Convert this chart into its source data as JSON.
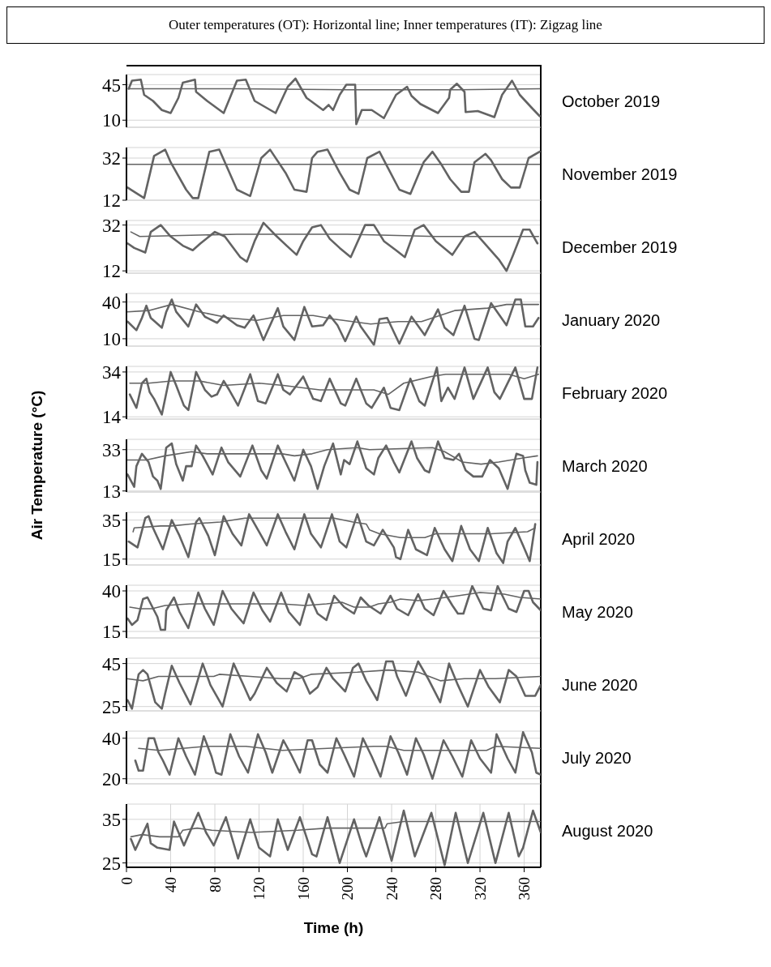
{
  "chart_data": [
    {
      "type": "line",
      "title": "Outer temperatures (OT): Horizontal line; Inner temperatures (IT): Zigzag line",
      "annotations": [
        "October 2019"
      ],
      "xlim": [
        0,
        375
      ],
      "xticks": [
        0,
        40,
        80,
        120,
        160,
        200,
        240,
        280,
        320,
        360
      ],
      "ylim": [
        3,
        55
      ],
      "yticks": [
        10,
        45
      ],
      "grid": true,
      "tick_labels": "y",
      "series": [
        {
          "color": "#636363",
          "x": [
            2,
            5,
            13,
            16,
            24,
            32,
            40,
            47,
            51,
            62,
            63,
            73,
            88,
            100,
            108,
            116,
            135,
            146,
            153,
            163,
            178,
            183,
            187,
            193,
            199,
            207,
            208,
            213,
            222,
            233,
            244,
            254,
            258,
            266,
            282,
            292,
            293,
            299,
            306,
            307,
            318,
            333,
            340,
            349,
            356,
            367,
            374
          ],
          "values": [
            41,
            49,
            50,
            35,
            29,
            20,
            17,
            32,
            47,
            50,
            38,
            29,
            17,
            49,
            50,
            29,
            17,
            43,
            51,
            32,
            20,
            25,
            20,
            35,
            45,
            45,
            6,
            20,
            20,
            12,
            35,
            43,
            34,
            26,
            17,
            32,
            40,
            46,
            38,
            18,
            19,
            13,
            35,
            49,
            35,
            22,
            14
          ]
        },
        {
          "color": "#636363",
          "x": [
            2,
            100,
            200,
            300,
            374
          ],
          "values": [
            41,
            41,
            40,
            40,
            41
          ]
        }
      ]
    },
    {
      "type": "line",
      "annotations": [
        "November 2019"
      ],
      "xlim": [
        0,
        375
      ],
      "xticks": [
        0,
        40,
        80,
        120,
        160,
        200,
        240,
        280,
        320,
        360
      ],
      "ylim": [
        12,
        37
      ],
      "yticks": [
        12,
        32
      ],
      "grid": true,
      "tick_labels": "y",
      "series": [
        {
          "color": "#636363",
          "x": [
            1,
            7,
            16,
            25,
            35,
            40,
            54,
            60,
            65,
            75,
            84,
            100,
            112,
            122,
            130,
            144,
            152,
            163,
            168,
            173,
            182,
            193,
            202,
            210,
            218,
            229,
            236,
            247,
            257,
            269,
            277,
            285,
            293,
            303,
            310,
            315,
            325,
            330,
            340,
            348,
            356,
            364,
            374
          ],
          "values": [
            18,
            16,
            13,
            33,
            36,
            30,
            17,
            13,
            13,
            35,
            36,
            17,
            14,
            32,
            36,
            25,
            17,
            16,
            32,
            35,
            36,
            25,
            17,
            15,
            32,
            35,
            28,
            17,
            15,
            30,
            35,
            29,
            22,
            16,
            16,
            30,
            34,
            31,
            22,
            18,
            18,
            32,
            35
          ]
        },
        {
          "color": "#636363",
          "x": [
            1,
            100,
            200,
            300,
            374
          ],
          "values": [
            29,
            29,
            29,
            29,
            29
          ]
        }
      ]
    },
    {
      "type": "line",
      "annotations": [
        "December 2019"
      ],
      "xlim": [
        0,
        375
      ],
      "xticks": [
        0,
        40,
        80,
        120,
        160,
        200,
        240,
        280,
        320,
        360
      ],
      "ylim": [
        11,
        34
      ],
      "yticks": [
        12,
        32
      ],
      "grid": true,
      "tick_labels": "y",
      "series": [
        {
          "color": "#636363",
          "x": [
            1,
            7,
            17,
            22,
            31,
            40,
            51,
            60,
            67,
            80,
            89,
            103,
            109,
            116,
            124,
            134,
            145,
            154,
            160,
            168,
            176,
            184,
            193,
            203,
            216,
            224,
            233,
            244,
            252,
            261,
            269,
            280,
            295,
            306,
            315,
            326,
            337,
            344,
            350,
            359,
            365,
            372
          ],
          "values": [
            24,
            22,
            20,
            29,
            32,
            27,
            23,
            21,
            24,
            29,
            27,
            18,
            16,
            25,
            33,
            28,
            23,
            19,
            25,
            31,
            32,
            26,
            22,
            18,
            32,
            32,
            25,
            21,
            18,
            30,
            32,
            25,
            19,
            27,
            29,
            23,
            17,
            12,
            19,
            30,
            30,
            24
          ]
        },
        {
          "color": "#636363",
          "x": [
            4,
            12,
            100,
            200,
            280,
            373
          ],
          "values": [
            29,
            27,
            28,
            28,
            27,
            27
          ]
        }
      ]
    },
    {
      "type": "line",
      "annotations": [
        "January 2020"
      ],
      "xlim": [
        0,
        375
      ],
      "xticks": [
        0,
        40,
        80,
        120,
        160,
        200,
        240,
        280,
        320,
        360
      ],
      "ylim": [
        4,
        47
      ],
      "yticks": [
        10,
        40
      ],
      "grid": true,
      "tick_labels": "y",
      "series": [
        {
          "color": "#636363",
          "x": [
            1,
            9,
            14,
            18,
            22,
            32,
            36,
            41,
            45,
            56,
            63,
            71,
            82,
            88,
            100,
            107,
            115,
            124,
            137,
            142,
            152,
            161,
            168,
            178,
            184,
            191,
            198,
            208,
            212,
            224,
            229,
            236,
            247,
            258,
            270,
            282,
            288,
            296,
            306,
            315,
            319,
            330,
            344,
            352,
            357,
            361,
            368,
            373
          ],
          "values": [
            24,
            17,
            27,
            37,
            27,
            19,
            32,
            42,
            32,
            20,
            38,
            28,
            23,
            29,
            21,
            19,
            29,
            9,
            35,
            20,
            9,
            36,
            20,
            21,
            29,
            21,
            8,
            28,
            20,
            5,
            26,
            27,
            6,
            28,
            13,
            34,
            19,
            13,
            37,
            10,
            9,
            39,
            21,
            42,
            42,
            20,
            20,
            27
          ]
        },
        {
          "color": "#636363",
          "x": [
            1,
            20,
            41,
            66,
            93,
            118,
            142,
            169,
            188,
            221,
            246,
            267,
            297,
            327,
            344,
            373
          ],
          "values": [
            32,
            33,
            38,
            32,
            27,
            25,
            29,
            29,
            26,
            22,
            24,
            24,
            33,
            35,
            38,
            38
          ]
        }
      ]
    },
    {
      "type": "line",
      "annotations": [
        "February 2020"
      ],
      "xlim": [
        0,
        375
      ],
      "xticks": [
        0,
        40,
        80,
        120,
        160,
        200,
        240,
        280,
        320,
        360
      ],
      "ylim": [
        13,
        36.5
      ],
      "yticks": [
        14,
        34
      ],
      "grid": true,
      "tick_labels": "y",
      "series": [
        {
          "color": "#636363",
          "x": [
            3,
            9,
            14,
            18,
            21,
            25,
            32,
            40,
            45,
            52,
            56,
            63,
            71,
            77,
            82,
            88,
            93,
            101,
            112,
            119,
            126,
            137,
            142,
            148,
            160,
            169,
            176,
            184,
            194,
            198,
            208,
            217,
            222,
            233,
            239,
            247,
            257,
            265,
            270,
            281,
            285,
            291,
            297,
            306,
            314,
            327,
            333,
            338,
            352,
            360,
            367,
            372
          ],
          "values": [
            24,
            18,
            29,
            31,
            25,
            22,
            15,
            34,
            28,
            19,
            17,
            34,
            26,
            23,
            24,
            30,
            26,
            19,
            33,
            21,
            20,
            33,
            26,
            24,
            32,
            22,
            21,
            31,
            20,
            19,
            31,
            20,
            18,
            27,
            18,
            17,
            31,
            21,
            19,
            36,
            21,
            27,
            22,
            36,
            22,
            36,
            25,
            22,
            36,
            22,
            22,
            36
          ]
        },
        {
          "color": "#636363",
          "x": [
            3,
            20,
            41,
            66,
            88,
            120,
            142,
            175,
            210,
            224,
            237,
            251,
            276,
            289,
            319,
            346,
            360,
            373
          ],
          "values": [
            29,
            29,
            30,
            30,
            28,
            29,
            28,
            26,
            26,
            26,
            24,
            29,
            32,
            33,
            33,
            33,
            31,
            33
          ]
        }
      ]
    },
    {
      "type": "line",
      "annotations": [
        "March 2020"
      ],
      "ylabel": "Air Temperature (°C)",
      "xlim": [
        0,
        375
      ],
      "xticks": [
        0,
        40,
        80,
        120,
        160,
        200,
        240,
        280,
        320,
        360
      ],
      "ylim": [
        12.5,
        38
      ],
      "yticks": [
        13,
        33
      ],
      "grid": true,
      "tick_labels": "y",
      "series": [
        {
          "color": "#636363",
          "x": [
            1,
            7,
            9,
            14,
            20,
            24,
            28,
            31,
            36,
            41,
            45,
            51,
            54,
            59,
            63,
            69,
            78,
            86,
            92,
            103,
            114,
            122,
            127,
            137,
            144,
            152,
            160,
            167,
            173,
            179,
            187,
            194,
            197,
            202,
            209,
            217,
            224,
            228,
            235,
            242,
            247,
            258,
            263,
            270,
            274,
            282,
            288,
            296,
            301,
            307,
            314,
            322,
            329,
            337,
            345,
            353,
            359,
            361,
            365,
            371,
            372
          ],
          "values": [
            21,
            15,
            25,
            31,
            27,
            20,
            18,
            14,
            34,
            36,
            26,
            18,
            25,
            25,
            35,
            30,
            21,
            34,
            27,
            20,
            35,
            23,
            19,
            35,
            27,
            18,
            33,
            25,
            14,
            25,
            36,
            21,
            28,
            26,
            37,
            24,
            21,
            29,
            35,
            27,
            22,
            37,
            29,
            23,
            22,
            37,
            29,
            28,
            31,
            23,
            20,
            20,
            28,
            24,
            14,
            31,
            30,
            23,
            17,
            16,
            27
          ]
        },
        {
          "color": "#636363",
          "x": [
            1,
            18,
            35,
            59,
            73,
            114,
            141,
            152,
            168,
            182,
            209,
            220,
            277,
            288,
            304,
            321,
            337,
            359,
            372
          ],
          "values": [
            28,
            28,
            30,
            32,
            31,
            31,
            31,
            30,
            31,
            33,
            34,
            33,
            34,
            32,
            27,
            26,
            27,
            29,
            30
          ]
        }
      ]
    },
    {
      "type": "line",
      "annotations": [
        "April 2020"
      ],
      "xlim": [
        0,
        375
      ],
      "xticks": [
        0,
        40,
        80,
        120,
        160,
        200,
        240,
        280,
        320,
        360
      ],
      "ylim": [
        12,
        39
      ],
      "yticks": [
        15,
        35
      ],
      "grid": true,
      "tick_labels": "y",
      "series": [
        {
          "color": "#636363",
          "x": [
            2,
            10,
            17,
            20,
            24,
            33,
            41,
            48,
            56,
            63,
            66,
            74,
            80,
            88,
            96,
            104,
            111,
            119,
            127,
            137,
            144,
            152,
            161,
            167,
            176,
            186,
            193,
            199,
            209,
            217,
            224,
            232,
            242,
            244,
            248,
            255,
            262,
            272,
            279,
            288,
            295,
            303,
            311,
            319,
            327,
            335,
            341,
            345,
            352,
            359,
            365,
            370
          ],
          "values": [
            24,
            21,
            36,
            37,
            31,
            20,
            35,
            27,
            16,
            34,
            36,
            27,
            17,
            37,
            28,
            22,
            38,
            30,
            22,
            38,
            29,
            20,
            38,
            28,
            21,
            38,
            24,
            21,
            38,
            24,
            22,
            30,
            21,
            16,
            15,
            30,
            20,
            17,
            31,
            20,
            14,
            32,
            20,
            14,
            31,
            18,
            13,
            24,
            31,
            22,
            14,
            33
          ]
        },
        {
          "color": "#636363",
          "x": [
            6,
            7,
            31,
            41,
            58,
            85,
            107,
            139,
            188,
            205,
            217,
            220,
            229,
            248,
            270,
            280,
            303,
            330,
            363,
            370
          ],
          "values": [
            29,
            31,
            32,
            32,
            33,
            34,
            36,
            36,
            36,
            34,
            33,
            30,
            28,
            26,
            26,
            28,
            28,
            28,
            29,
            31
          ]
        }
      ]
    },
    {
      "type": "line",
      "annotations": [
        "May 2020"
      ],
      "xlim": [
        0,
        375
      ],
      "xticks": [
        0,
        40,
        80,
        120,
        160,
        200,
        240,
        280,
        320,
        360
      ],
      "ylim": [
        11,
        43.5
      ],
      "yticks": [
        15,
        40
      ],
      "grid": true,
      "tick_labels": "y",
      "series": [
        {
          "color": "#636363",
          "x": [
            1,
            5,
            10,
            15,
            19,
            25,
            28,
            31,
            35,
            36,
            43,
            48,
            56,
            65,
            71,
            79,
            87,
            95,
            101,
            106,
            115,
            123,
            130,
            140,
            147,
            157,
            165,
            173,
            181,
            188,
            197,
            206,
            212,
            219,
            230,
            239,
            245,
            255,
            264,
            270,
            278,
            287,
            295,
            300,
            305,
            313,
            323,
            330,
            336,
            346,
            353,
            360,
            364,
            368,
            375
          ],
          "values": [
            23,
            19,
            22,
            35,
            36,
            28,
            24,
            16,
            16,
            28,
            36,
            27,
            17,
            39,
            29,
            19,
            40,
            29,
            24,
            20,
            39,
            28,
            21,
            39,
            27,
            19,
            38,
            26,
            22,
            37,
            30,
            26,
            36,
            31,
            26,
            37,
            29,
            25,
            38,
            29,
            25,
            40,
            31,
            26,
            26,
            43,
            29,
            28,
            43,
            29,
            27,
            40,
            40,
            33,
            28
          ]
        },
        {
          "color": "#636363",
          "x": [
            3,
            12,
            23,
            35,
            57,
            84,
            140,
            162,
            181,
            195,
            206,
            220,
            228,
            239,
            248,
            264,
            278,
            300,
            320,
            342,
            356,
            375
          ],
          "values": [
            30,
            29,
            29,
            31,
            32,
            32,
            32,
            31,
            32,
            33,
            30,
            30,
            32,
            33,
            35,
            34,
            35,
            37,
            39,
            38,
            36,
            35
          ]
        }
      ]
    },
    {
      "type": "line",
      "annotations": [
        "June 2020"
      ],
      "xlim": [
        0,
        375
      ],
      "xticks": [
        0,
        40,
        80,
        120,
        160,
        200,
        240,
        280,
        320,
        360
      ],
      "ylim": [
        23,
        47.5
      ],
      "yticks": [
        25,
        45
      ],
      "grid": true,
      "tick_labels": "y",
      "series": [
        {
          "color": "#636363",
          "x": [
            1,
            5,
            11,
            15,
            19,
            26,
            32,
            35,
            41,
            48,
            58,
            69,
            76,
            87,
            97,
            105,
            112,
            116,
            127,
            136,
            145,
            152,
            159,
            166,
            173,
            181,
            187,
            198,
            205,
            210,
            217,
            227,
            235,
            241,
            245,
            253,
            264,
            273,
            284,
            292,
            300,
            309,
            320,
            328,
            338,
            346,
            353,
            361,
            370,
            375
          ],
          "values": [
            28,
            24,
            40,
            42,
            40,
            27,
            24,
            31,
            44,
            36,
            26,
            45,
            35,
            25,
            45,
            36,
            28,
            31,
            43,
            36,
            32,
            41,
            39,
            31,
            34,
            43,
            38,
            32,
            43,
            45,
            37,
            28,
            46,
            46,
            39,
            30,
            46,
            38,
            27,
            45,
            35,
            25,
            42,
            34,
            27,
            42,
            39,
            30,
            30,
            35
          ]
        },
        {
          "color": "#636363",
          "x": [
            0,
            15,
            29,
            57,
            79,
            84,
            112,
            140,
            156,
            167,
            209,
            237,
            264,
            284,
            306,
            334,
            375
          ],
          "values": [
            38,
            37,
            39,
            39,
            39,
            40,
            39,
            38,
            38,
            40,
            41,
            42,
            41,
            37,
            38,
            38,
            39
          ]
        }
      ]
    },
    {
      "type": "line",
      "annotations": [
        "July 2020"
      ],
      "xlim": [
        0,
        375
      ],
      "xticks": [
        0,
        40,
        80,
        120,
        160,
        200,
        240,
        280,
        320,
        360
      ],
      "ylim": [
        17.5,
        43.5
      ],
      "yticks": [
        20,
        40
      ],
      "grid": true,
      "tick_labels": "y",
      "series": [
        {
          "color": "#636363",
          "x": [
            8,
            11,
            15,
            20,
            25,
            29,
            33,
            39,
            47,
            54,
            62,
            70,
            77,
            81,
            86,
            94,
            102,
            110,
            119,
            126,
            132,
            142,
            149,
            157,
            164,
            168,
            175,
            182,
            190,
            197,
            206,
            214,
            222,
            230,
            239,
            246,
            254,
            262,
            269,
            277,
            287,
            295,
            304,
            312,
            320,
            330,
            335,
            345,
            352,
            359,
            367,
            371,
            375
          ],
          "values": [
            29,
            24,
            24,
            40,
            40,
            33,
            29,
            22,
            40,
            31,
            22,
            41,
            31,
            23,
            22,
            42,
            31,
            23,
            42,
            33,
            23,
            39,
            32,
            23,
            39,
            39,
            27,
            23,
            40,
            32,
            21,
            40,
            31,
            21,
            41,
            33,
            22,
            40,
            32,
            20,
            39,
            31,
            21,
            39,
            30,
            23,
            42,
            30,
            23,
            43,
            33,
            23,
            22
          ]
        },
        {
          "color": "#636363",
          "x": [
            11,
            30,
            72,
            108,
            141,
            182,
            224,
            235,
            251,
            279,
            295,
            326,
            334,
            375
          ],
          "values": [
            35,
            34,
            36,
            36,
            34,
            35,
            36,
            36,
            34,
            34,
            34,
            34,
            36,
            35
          ]
        }
      ]
    },
    {
      "type": "line",
      "annotations": [
        "August 2020"
      ],
      "xlabel": "Time (h)",
      "xlim": [
        0,
        375
      ],
      "xticks": [
        0,
        40,
        80,
        120,
        160,
        200,
        240,
        280,
        320,
        360
      ],
      "ylim": [
        24,
        38.5
      ],
      "yticks": [
        25,
        35
      ],
      "grid": true,
      "series": [
        {
          "color": "#636363",
          "x": [
            4,
            8,
            19,
            22,
            28,
            39,
            43,
            52,
            65,
            72,
            79,
            90,
            101,
            112,
            120,
            130,
            137,
            146,
            157,
            168,
            172,
            182,
            193,
            206,
            214,
            217,
            229,
            240,
            251,
            261,
            276,
            288,
            298,
            309,
            323,
            334,
            346,
            355,
            359,
            368,
            375
          ],
          "values": [
            30.5,
            28,
            34,
            29.5,
            28.5,
            28,
            34.5,
            29,
            36.5,
            32,
            29,
            35.5,
            26,
            35,
            28.5,
            26.5,
            35,
            28,
            35.5,
            27,
            26.5,
            35.5,
            25,
            35,
            28.5,
            26.5,
            35.5,
            25.5,
            37,
            26.5,
            36.5,
            24.5,
            36.5,
            25,
            36.5,
            25,
            36.5,
            26.5,
            28.5,
            37,
            32
          ]
        },
        {
          "color": "#636363",
          "x": [
            4,
            14,
            30,
            47,
            51,
            64,
            77,
            113,
            155,
            182,
            210,
            234,
            236,
            251,
            279,
            320,
            375
          ],
          "values": [
            31,
            31.5,
            31,
            31,
            32.5,
            33,
            32.5,
            32,
            32.5,
            33,
            33,
            33,
            34,
            34.5,
            34.5,
            34.5,
            34.5
          ]
        }
      ]
    }
  ]
}
